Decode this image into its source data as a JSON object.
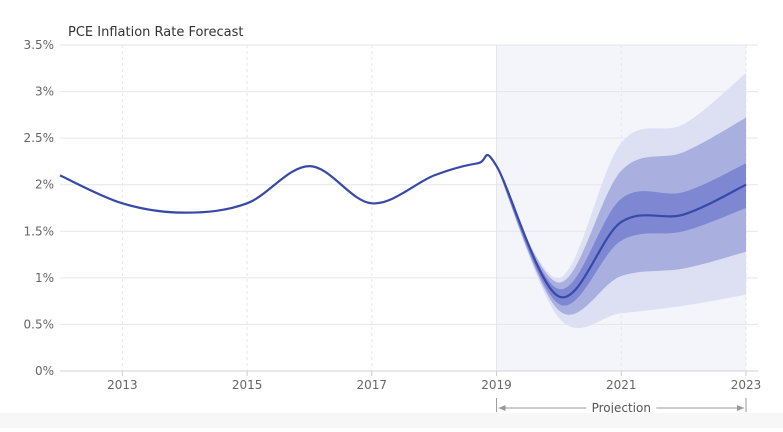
{
  "chart_data": {
    "type": "line",
    "title": "PCE Inflation Rate Forecast",
    "xlabel": "",
    "ylabel": "",
    "xlim": [
      2012,
      2023
    ],
    "ylim": [
      0,
      3.5
    ],
    "y_ticks": [
      {
        "v": 0,
        "label": "0%"
      },
      {
        "v": 0.5,
        "label": "0.5%"
      },
      {
        "v": 1,
        "label": "1%"
      },
      {
        "v": 1.5,
        "label": "1.5%"
      },
      {
        "v": 2,
        "label": "2%"
      },
      {
        "v": 2.5,
        "label": "2.5%"
      },
      {
        "v": 3,
        "label": "3%"
      },
      {
        "v": 3.5,
        "label": "3.5%"
      }
    ],
    "x_ticks": [
      {
        "v": 2013,
        "label": "2013"
      },
      {
        "v": 2015,
        "label": "2015"
      },
      {
        "v": 2017,
        "label": "2017"
      },
      {
        "v": 2019,
        "label": "2019"
      },
      {
        "v": 2021,
        "label": "2021"
      },
      {
        "v": 2023,
        "label": "2023"
      }
    ],
    "grid": true,
    "projection": {
      "label": "Projection",
      "x_start": 2019,
      "x_end": 2023
    },
    "series": [
      {
        "x": [
          2012,
          2013,
          2014,
          2015,
          2016,
          2017,
          2018,
          2018.7,
          2019,
          2020,
          2021,
          2022,
          2023
        ],
        "values": [
          2.1,
          1.8,
          1.7,
          1.8,
          2.2,
          1.8,
          2.1,
          2.23,
          2.2,
          0.8,
          1.6,
          1.68,
          2.0
        ]
      }
    ],
    "bands": [
      {
        "x": [
          2019,
          2020,
          2021,
          2022,
          2023
        ],
        "lower": [
          2.2,
          0.57,
          0.62,
          0.7,
          0.82
        ],
        "upper": [
          2.2,
          1.0,
          2.45,
          2.65,
          3.2
        ]
      },
      {
        "x": [
          2019,
          2020,
          2021,
          2022,
          2023
        ],
        "lower": [
          2.2,
          0.65,
          1.02,
          1.1,
          1.28
        ],
        "upper": [
          2.2,
          0.95,
          2.15,
          2.35,
          2.72
        ]
      },
      {
        "x": [
          2019,
          2020,
          2021,
          2022,
          2023
        ],
        "lower": [
          2.2,
          0.72,
          1.4,
          1.5,
          1.75
        ],
        "upper": [
          2.2,
          0.88,
          1.85,
          1.92,
          2.23
        ]
      }
    ],
    "colors": {
      "line": "#3949a8",
      "band_outer": "#dde0f3",
      "band_mid": "#a9b0e0",
      "band_inner": "#7d87d2",
      "projection_bg": "#f4f5fa",
      "grid": "#e6e6e6",
      "axis_text": "#666666",
      "title_text": "#333333",
      "arrow": "#999999"
    }
  }
}
